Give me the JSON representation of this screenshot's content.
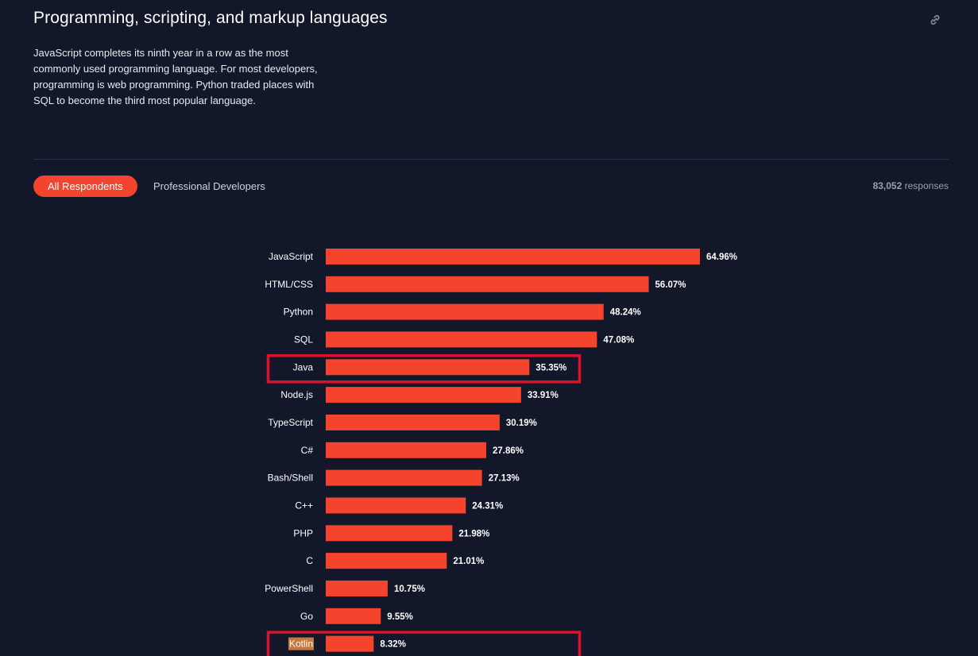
{
  "header": {
    "title": "Programming, scripting, and markup languages",
    "description": "JavaScript completes its ninth year in a row as the most commonly used programming language. For most developers, programming is web programming. Python traded places with SQL to become the third most popular language."
  },
  "tabs": [
    {
      "label": "All Respondents",
      "active": true
    },
    {
      "label": "Professional Developers",
      "active": false
    }
  ],
  "responses": {
    "count": "83,052",
    "label": "responses"
  },
  "icons": {
    "share": "link-icon"
  },
  "colors": {
    "background": "#121729",
    "bar": "#f4442e",
    "highlight_box": "#e0102a",
    "kotlin_label_highlight": "#c9773e"
  },
  "chart_data": {
    "type": "bar",
    "orientation": "horizontal",
    "categories": [
      "JavaScript",
      "HTML/CSS",
      "Python",
      "SQL",
      "Java",
      "Node.js",
      "TypeScript",
      "C#",
      "Bash/Shell",
      "C++",
      "PHP",
      "C",
      "PowerShell",
      "Go",
      "Kotlin"
    ],
    "values": [
      64.96,
      56.07,
      48.24,
      47.08,
      35.35,
      33.91,
      30.19,
      27.86,
      27.13,
      24.31,
      21.98,
      21.01,
      10.75,
      9.55,
      8.32
    ],
    "value_labels": [
      "64.96%",
      "56.07%",
      "48.24%",
      "47.08%",
      "35.35%",
      "33.91%",
      "30.19%",
      "27.86%",
      "27.13%",
      "24.31%",
      "21.98%",
      "21.01%",
      "10.75%",
      "9.55%",
      "8.32%"
    ],
    "highlighted": [
      "Java",
      "Kotlin"
    ],
    "grid": false,
    "legend": "none"
  }
}
